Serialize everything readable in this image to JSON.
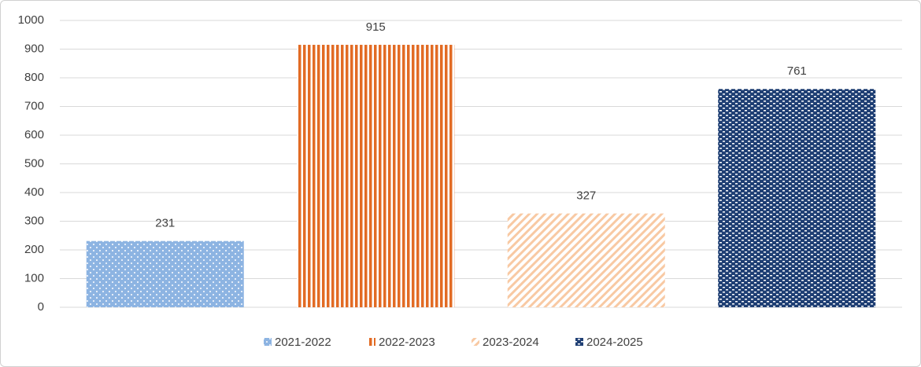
{
  "chart_data": {
    "type": "bar",
    "categories": [
      null
    ],
    "series": [
      {
        "name": "2021-2022",
        "color": "#8db4e2",
        "pattern": "dots",
        "values": [
          231
        ]
      },
      {
        "name": "2022-2023",
        "color": "#e26b24",
        "pattern": "vertical",
        "values": [
          915
        ]
      },
      {
        "name": "2023-2024",
        "color": "#f8c9a3",
        "pattern": "diagonal",
        "values": [
          327
        ]
      },
      {
        "name": "2024-2025",
        "color": "#1f3f74",
        "pattern": "checker",
        "values": [
          761
        ]
      }
    ],
    "ylim": [
      0,
      1000
    ],
    "yticks": [
      0,
      100,
      200,
      300,
      400,
      500,
      600,
      700,
      800,
      900,
      1000
    ],
    "grid": true,
    "data_labels": true,
    "legend": "bottom"
  }
}
